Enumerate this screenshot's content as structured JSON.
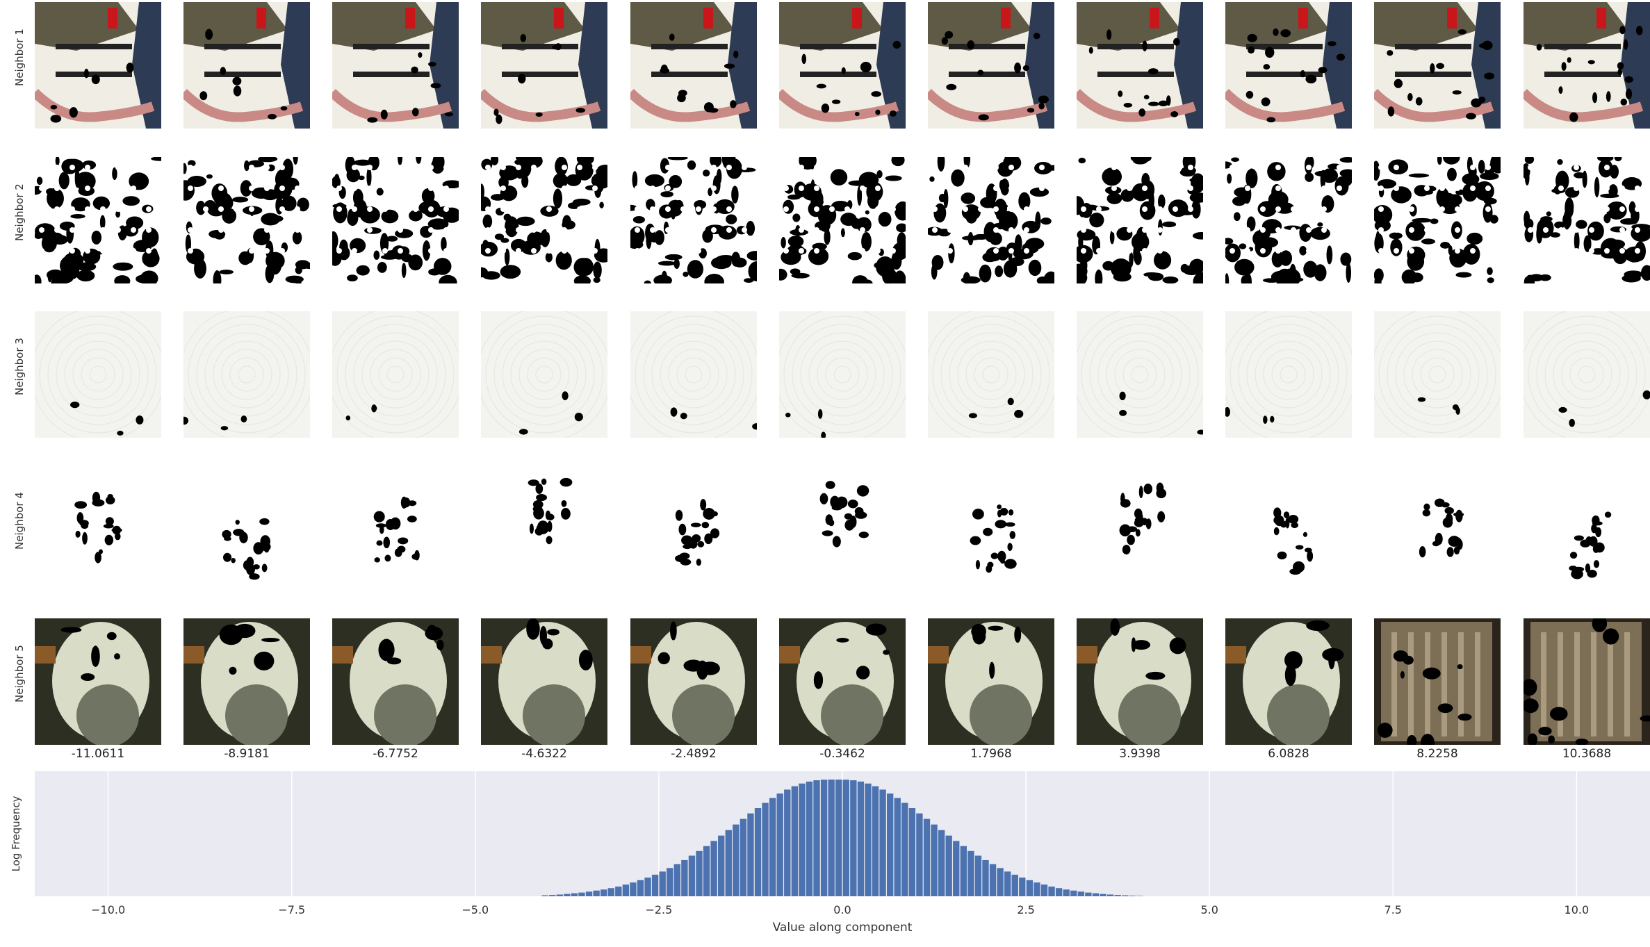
{
  "row_labels": [
    "Neighbor 1",
    "Neighbor 2",
    "Neighbor 3",
    "Neighbor 4",
    "Neighbor 5"
  ],
  "row_icons": [
    "cooking-photo-icon",
    "blot-pattern-icon",
    "paper-texture-icon",
    "sparse-blot-icon",
    "dog-photo-icon"
  ],
  "column_values": [
    "-11.0611",
    "-8.9181",
    "-6.7752",
    "-4.6322",
    "-2.4892",
    "-0.3462",
    "1.7968",
    "3.9398",
    "6.0828",
    "8.2258",
    "10.3688"
  ],
  "colors": {
    "bar": "#4c72b0",
    "axes_bg": "#eaeaf2",
    "grid": "#ffffff"
  },
  "chart_data": {
    "type": "bar",
    "title": "",
    "xlabel": "Value along component",
    "ylabel": "Log Frequency",
    "xlim": [
      -11.0,
      11.0
    ],
    "xticks": [
      -10.0,
      -7.5,
      -5.0,
      -2.5,
      0.0,
      2.5,
      5.0,
      7.5,
      10.0
    ],
    "xtick_labels": [
      "−10.0",
      "−7.5",
      "−5.0",
      "−2.5",
      "0.0",
      "2.5",
      "5.0",
      "7.5",
      "10.0"
    ],
    "grid": true,
    "bin_width": 0.1,
    "x": [
      -4.05,
      -3.95,
      -3.85,
      -3.75,
      -3.65,
      -3.55,
      -3.45,
      -3.35,
      -3.25,
      -3.15,
      -3.05,
      -2.95,
      -2.85,
      -2.75,
      -2.65,
      -2.55,
      -2.45,
      -2.35,
      -2.25,
      -2.15,
      -2.05,
      -1.95,
      -1.85,
      -1.75,
      -1.65,
      -1.55,
      -1.45,
      -1.35,
      -1.25,
      -1.15,
      -1.05,
      -0.95,
      -0.85,
      -0.75,
      -0.65,
      -0.55,
      -0.45,
      -0.35,
      -0.25,
      -0.15,
      -0.05,
      0.05,
      0.15,
      0.25,
      0.35,
      0.45,
      0.55,
      0.65,
      0.75,
      0.85,
      0.95,
      1.05,
      1.15,
      1.25,
      1.35,
      1.45,
      1.55,
      1.65,
      1.75,
      1.85,
      1.95,
      2.05,
      2.15,
      2.25,
      2.35,
      2.45,
      2.55,
      2.65,
      2.75,
      2.85,
      2.95,
      3.05,
      3.15,
      3.25,
      3.35,
      3.45,
      3.55,
      3.65,
      3.75,
      3.85,
      3.95,
      4.05
    ],
    "values": [
      0.008,
      0.011,
      0.015,
      0.02,
      0.026,
      0.032,
      0.04,
      0.049,
      0.058,
      0.07,
      0.083,
      0.1,
      0.118,
      0.138,
      0.16,
      0.185,
      0.212,
      0.242,
      0.275,
      0.31,
      0.348,
      0.388,
      0.43,
      0.474,
      0.52,
      0.567,
      0.615,
      0.663,
      0.71,
      0.756,
      0.8,
      0.842,
      0.88,
      0.914,
      0.943,
      0.966,
      0.983,
      0.994,
      0.999,
      1.0,
      1.0,
      0.999,
      0.994,
      0.983,
      0.966,
      0.943,
      0.914,
      0.88,
      0.842,
      0.8,
      0.756,
      0.71,
      0.663,
      0.615,
      0.567,
      0.52,
      0.474,
      0.43,
      0.388,
      0.348,
      0.31,
      0.275,
      0.242,
      0.212,
      0.185,
      0.16,
      0.138,
      0.118,
      0.1,
      0.083,
      0.07,
      0.058,
      0.049,
      0.04,
      0.032,
      0.026,
      0.02,
      0.015,
      0.011,
      0.008,
      0.005,
      0.003
    ]
  }
}
